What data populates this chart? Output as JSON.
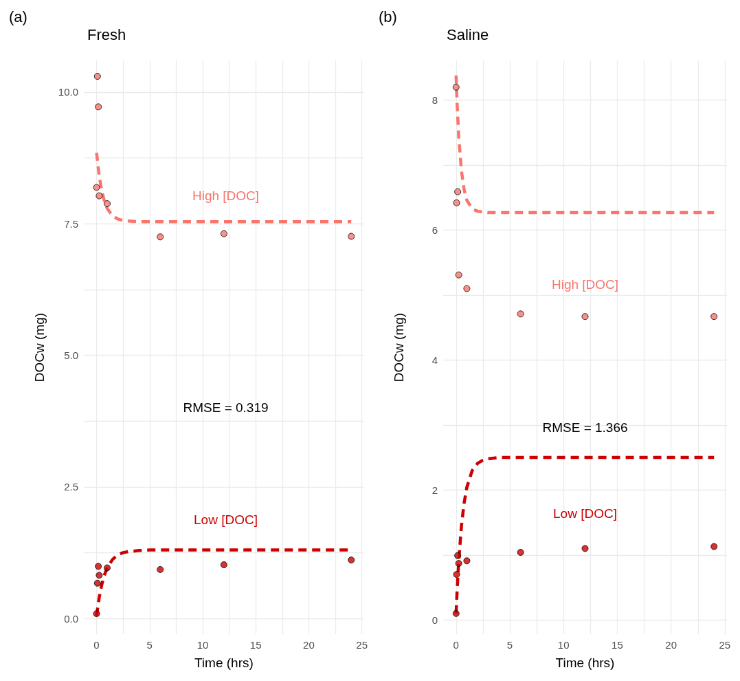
{
  "chart_data": [
    {
      "type": "scatter",
      "title": "(a)",
      "subtitle": "Fresh",
      "xlabel": "Time (hrs)",
      "ylabel": "DOCw (mg)",
      "marker": "circle",
      "grid": true,
      "xlim": [
        -1.2,
        25.2
      ],
      "xticks": [
        0,
        {
          "value": 2.5,
          "label": null
        },
        5,
        {
          "value": 7.5,
          "label": null
        },
        10,
        {
          "value": 12.5,
          "label": null
        },
        15,
        {
          "value": 17.5,
          "label": null
        },
        20,
        {
          "value": 22.5,
          "label": null
        },
        25
      ],
      "ylim": [
        -0.3,
        10.6
      ],
      "yticks": [
        {
          "value": 0,
          "label": "0.0"
        },
        {
          "value": 1.25,
          "label": null
        },
        2.5,
        {
          "value": 3.75,
          "label": null
        },
        {
          "value": 5,
          "label": "5.0"
        },
        {
          "value": 6.25,
          "label": null
        },
        7.5,
        {
          "value": 8.75,
          "label": null
        },
        {
          "value": 10,
          "label": "10.0"
        }
      ],
      "series": [
        {
          "type": "line",
          "color": "#f8766d",
          "line_style": "dashed",
          "marker": "none",
          "x": [
            0,
            0.25,
            0.5,
            0.75,
            1,
            1.5,
            2,
            2.5,
            3,
            4,
            5,
            24
          ],
          "values": [
            8.85,
            8.41,
            8.11,
            7.92,
            7.79,
            7.65,
            7.59,
            7.56,
            7.55,
            7.54,
            7.54,
            7.54
          ]
        },
        {
          "type": "line",
          "color": "#cc0000",
          "line_style": "dashed",
          "marker": "none",
          "x": [
            0,
            0.25,
            0.5,
            0.75,
            1,
            1.5,
            2,
            2.5,
            3,
            4,
            5,
            24
          ],
          "values": [
            0.05,
            0.4,
            0.65,
            0.83,
            0.96,
            1.12,
            1.21,
            1.25,
            1.27,
            1.29,
            1.3,
            1.3
          ]
        },
        {
          "color": "#f8766d",
          "x": [
            0,
            0.083,
            0.167,
            0.25,
            1,
            6,
            12,
            24
          ],
          "values": [
            8.19,
            10.3,
            9.72,
            8.03,
            7.88,
            7.25,
            7.31,
            7.26
          ]
        },
        {
          "color": "#cc0000",
          "x": [
            0,
            0.083,
            0.167,
            0.25,
            1,
            6,
            12,
            24
          ],
          "values": [
            0.09,
            0.67,
            0.99,
            0.82,
            0.96,
            0.93,
            1.02,
            1.11
          ]
        }
      ],
      "annotations": [
        "High [DOC]",
        "RMSE = 0.319",
        "Low [DOC]"
      ]
    },
    {
      "type": "scatter",
      "title": "(b)",
      "subtitle": "Saline",
      "xlabel": "Time (hrs)",
      "ylabel": "DOCw (mg)",
      "marker": "circle",
      "grid": true,
      "xlim": [
        -1.2,
        25.2
      ],
      "xticks": [
        0,
        {
          "value": 2.5,
          "label": null
        },
        5,
        {
          "value": 7.5,
          "label": null
        },
        10,
        {
          "value": 12.5,
          "label": null
        },
        15,
        {
          "value": 17.5,
          "label": null
        },
        20,
        {
          "value": 22.5,
          "label": null
        },
        25
      ],
      "ylim": [
        -0.22,
        8.61
      ],
      "yticks": [
        0,
        {
          "value": 1,
          "label": null
        },
        2,
        {
          "value": 3,
          "label": null
        },
        4,
        {
          "value": 5,
          "label": null
        },
        6,
        {
          "value": 7,
          "label": null
        },
        8
      ],
      "series": [
        {
          "type": "line",
          "color": "#f8766d",
          "line_style": "dashed",
          "marker": "none",
          "x": [
            0,
            0.1,
            0.25,
            0.5,
            0.75,
            1,
            1.5,
            2,
            3,
            24
          ],
          "values": [
            8.38,
            7.93,
            7.43,
            6.91,
            6.62,
            6.46,
            6.33,
            6.29,
            6.27,
            6.27
          ]
        },
        {
          "type": "line",
          "color": "#cc0000",
          "line_style": "dashed",
          "marker": "none",
          "x": [
            0,
            0.1,
            0.25,
            0.5,
            0.75,
            1,
            1.5,
            2,
            2.5,
            3,
            4,
            24
          ],
          "values": [
            0.1,
            0.46,
            0.91,
            1.45,
            1.8,
            2.04,
            2.3,
            2.41,
            2.46,
            2.48,
            2.5,
            2.5
          ]
        },
        {
          "color": "#f8766d",
          "x": [
            0,
            0.05,
            0.15,
            0.25,
            1,
            6,
            12,
            24
          ],
          "values": [
            8.2,
            6.42,
            6.59,
            5.31,
            5.1,
            4.71,
            4.67,
            4.67
          ]
        },
        {
          "color": "#cc0000",
          "x": [
            0,
            0.05,
            0.15,
            0.25,
            1,
            6,
            12,
            24
          ],
          "values": [
            0.1,
            0.7,
            0.99,
            0.87,
            0.91,
            1.04,
            1.1,
            1.13
          ]
        }
      ],
      "annotations": [
        "High [DOC]",
        "RMSE = 1.366",
        "Low [DOC]"
      ]
    }
  ]
}
